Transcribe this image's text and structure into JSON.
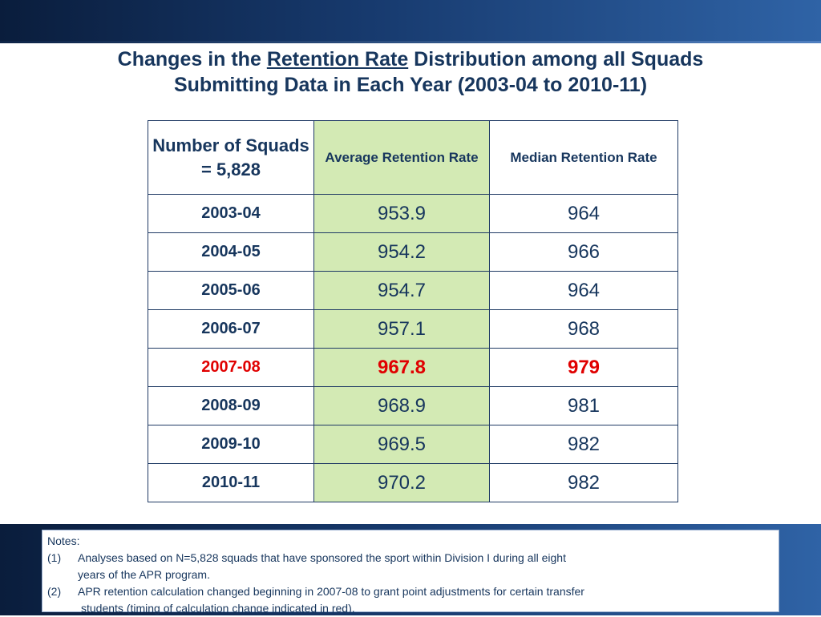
{
  "title": {
    "part1": "Changes in the ",
    "underlined": "Retention Rate",
    "part2": " Distribution among all Squads",
    "line2": "Submitting Data in Each Year (2003-04 to 2010-11)"
  },
  "table": {
    "headers": {
      "col1": "Number of Squads = 5,828",
      "col2": "Average Retention Rate",
      "col3": "Median Retention Rate"
    },
    "rows": [
      {
        "year": "2003-04",
        "avg": "953.9",
        "median": "964"
      },
      {
        "year": "2004-05",
        "avg": "954.2",
        "median": "966"
      },
      {
        "year": "2005-06",
        "avg": "954.7",
        "median": "964"
      },
      {
        "year": "2006-07",
        "avg": "957.1",
        "median": "968"
      },
      {
        "year": "2007-08",
        "avg": "967.8",
        "median": "979"
      },
      {
        "year": "2008-09",
        "avg": "968.9",
        "median": "981"
      },
      {
        "year": "2009-10",
        "avg": "969.5",
        "median": "982"
      },
      {
        "year": "2010-11",
        "avg": "970.2",
        "median": "982"
      }
    ],
    "highlight_color": "#e00000",
    "avg_column_color": "#d3eab4"
  },
  "notes": {
    "heading": "Notes:",
    "items": [
      {
        "num": "(1)",
        "line1": "Analyses based on N=5,828 squads that have sponsored the sport within Division I during all eight",
        "line2": "years of the APR program."
      },
      {
        "num": "(2)",
        "line1": "APR retention calculation changed  beginning in 2007-08 to grant point adjustments for certain transfer",
        "line2": "students (timing of calculation change indicated in red)."
      }
    ]
  }
}
